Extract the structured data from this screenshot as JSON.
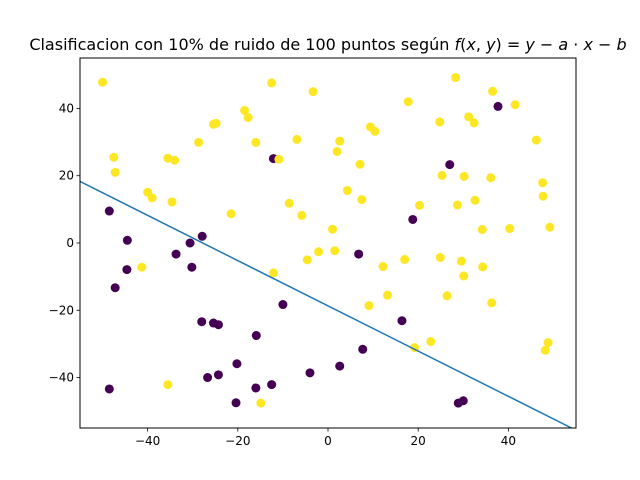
{
  "chart_data": {
    "type": "scatter",
    "title": "Clasificacion con 10% de ruido de 100 puntos según f(x, y) = y − a · x − b",
    "xlabel": "",
    "ylabel": "",
    "xlim": [
      -55,
      55
    ],
    "ylim": [
      -55,
      55
    ],
    "xticks": [
      -40,
      -20,
      0,
      20,
      40
    ],
    "yticks": [
      -40,
      -20,
      0,
      20,
      40
    ],
    "grid": false,
    "colors": {
      "class_pos": "#fde725",
      "class_neg": "#440154",
      "line": "#1f77b4"
    },
    "line": {
      "x": [
        -55,
        54
      ],
      "y": [
        18.3,
        -55
      ]
    },
    "points": [
      {
        "x": -50,
        "y": 47.8,
        "c": 1
      },
      {
        "x": -47.5,
        "y": 25.5,
        "c": 1
      },
      {
        "x": -47.2,
        "y": 21,
        "c": 1
      },
      {
        "x": -48.5,
        "y": 9.5,
        "c": 0
      },
      {
        "x": -48.5,
        "y": -43.4,
        "c": 0
      },
      {
        "x": -47.2,
        "y": -13.3,
        "c": 0
      },
      {
        "x": -44.5,
        "y": 0.8,
        "c": 0
      },
      {
        "x": -44.6,
        "y": -7.9,
        "c": 0
      },
      {
        "x": -41.3,
        "y": -7.2,
        "c": 1
      },
      {
        "x": -40,
        "y": 15.1,
        "c": 1
      },
      {
        "x": -39,
        "y": 13.4,
        "c": 1
      },
      {
        "x": -35.5,
        "y": 25.2,
        "c": 1
      },
      {
        "x": -35.5,
        "y": -42.1,
        "c": 1
      },
      {
        "x": -34.6,
        "y": 12.2,
        "c": 1
      },
      {
        "x": -34,
        "y": 24.6,
        "c": 1
      },
      {
        "x": -33.7,
        "y": -3.3,
        "c": 0
      },
      {
        "x": -30.6,
        "y": 0,
        "c": 0
      },
      {
        "x": -30.2,
        "y": -7.2,
        "c": 0
      },
      {
        "x": -28.7,
        "y": 29.9,
        "c": 1
      },
      {
        "x": -27.9,
        "y": 2,
        "c": 0
      },
      {
        "x": -28,
        "y": -23.4,
        "c": 0
      },
      {
        "x": -26.7,
        "y": -40,
        "c": 0
      },
      {
        "x": -25.4,
        "y": 35.3,
        "c": 1
      },
      {
        "x": -24.8,
        "y": 35.6,
        "c": 1
      },
      {
        "x": -25.4,
        "y": -23.8,
        "c": 0
      },
      {
        "x": -24.3,
        "y": -24.3,
        "c": 0
      },
      {
        "x": -24.3,
        "y": -39.2,
        "c": 0
      },
      {
        "x": -21.5,
        "y": 8.7,
        "c": 1
      },
      {
        "x": -20.2,
        "y": -35.9,
        "c": 0
      },
      {
        "x": -20.4,
        "y": -47.5,
        "c": 0
      },
      {
        "x": -18.5,
        "y": 39.4,
        "c": 1
      },
      {
        "x": -17.7,
        "y": 37.3,
        "c": 1
      },
      {
        "x": -16,
        "y": 29.9,
        "c": 1
      },
      {
        "x": -15.9,
        "y": -27.5,
        "c": 0
      },
      {
        "x": -16,
        "y": -43.1,
        "c": 0
      },
      {
        "x": -14.9,
        "y": -47.6,
        "c": 1
      },
      {
        "x": -12.5,
        "y": 47.6,
        "c": 1
      },
      {
        "x": -12.1,
        "y": 25.1,
        "c": 0
      },
      {
        "x": -10.9,
        "y": 24.9,
        "c": 1
      },
      {
        "x": -12.1,
        "y": -8.9,
        "c": 1
      },
      {
        "x": -12.5,
        "y": -42.1,
        "c": 0
      },
      {
        "x": -10,
        "y": -18.3,
        "c": 0
      },
      {
        "x": -8.6,
        "y": 11.8,
        "c": 1
      },
      {
        "x": -6.9,
        "y": 30.8,
        "c": 1
      },
      {
        "x": -5.8,
        "y": 8.2,
        "c": 1
      },
      {
        "x": -4.6,
        "y": -5,
        "c": 1
      },
      {
        "x": -4,
        "y": -38.6,
        "c": 0
      },
      {
        "x": -3.3,
        "y": 45,
        "c": 1
      },
      {
        "x": -2.1,
        "y": -2.6,
        "c": 1
      },
      {
        "x": 1,
        "y": 4.1,
        "c": 1
      },
      {
        "x": 1.5,
        "y": -2.3,
        "c": 1
      },
      {
        "x": 2,
        "y": 27.2,
        "c": 1
      },
      {
        "x": 2.6,
        "y": 30.3,
        "c": 1
      },
      {
        "x": 2.6,
        "y": -36.6,
        "c": 0
      },
      {
        "x": 4.3,
        "y": 15.6,
        "c": 1
      },
      {
        "x": 6.8,
        "y": -3.3,
        "c": 0
      },
      {
        "x": 7.1,
        "y": 23.4,
        "c": 1
      },
      {
        "x": 7.5,
        "y": 12.9,
        "c": 1
      },
      {
        "x": 7.7,
        "y": -31.6,
        "c": 0
      },
      {
        "x": 9.1,
        "y": -18.6,
        "c": 1
      },
      {
        "x": 9.4,
        "y": 34.5,
        "c": 1
      },
      {
        "x": 10.4,
        "y": 33.2,
        "c": 1
      },
      {
        "x": 12.2,
        "y": -7,
        "c": 1
      },
      {
        "x": 13.2,
        "y": -15.5,
        "c": 1
      },
      {
        "x": 16.4,
        "y": -23.1,
        "c": 0
      },
      {
        "x": 17,
        "y": -4.9,
        "c": 1
      },
      {
        "x": 17.8,
        "y": 42,
        "c": 1
      },
      {
        "x": 18.8,
        "y": 7,
        "c": 0
      },
      {
        "x": 19.2,
        "y": -31.1,
        "c": 1
      },
      {
        "x": 20.3,
        "y": 11.2,
        "c": 1
      },
      {
        "x": 22.8,
        "y": -29.3,
        "c": 1
      },
      {
        "x": 24.8,
        "y": 36,
        "c": 1
      },
      {
        "x": 24.9,
        "y": -4.3,
        "c": 1
      },
      {
        "x": 25.3,
        "y": 20.1,
        "c": 1
      },
      {
        "x": 26.4,
        "y": -15.7,
        "c": 1
      },
      {
        "x": 27,
        "y": 23.3,
        "c": 0
      },
      {
        "x": 28.3,
        "y": 49.2,
        "c": 1
      },
      {
        "x": 28.7,
        "y": 11.3,
        "c": 1
      },
      {
        "x": 28.9,
        "y": -47.6,
        "c": 0
      },
      {
        "x": 29.6,
        "y": -5.4,
        "c": 1
      },
      {
        "x": 30.2,
        "y": 19.8,
        "c": 1
      },
      {
        "x": 30.1,
        "y": -9.8,
        "c": 1
      },
      {
        "x": 30,
        "y": -46.9,
        "c": 0
      },
      {
        "x": 31.2,
        "y": 37.5,
        "c": 1
      },
      {
        "x": 32.4,
        "y": 35.7,
        "c": 1
      },
      {
        "x": 32.6,
        "y": 12.7,
        "c": 1
      },
      {
        "x": 34.2,
        "y": 4,
        "c": 1
      },
      {
        "x": 34.3,
        "y": -7.1,
        "c": 1
      },
      {
        "x": 36.1,
        "y": 19.4,
        "c": 1
      },
      {
        "x": 36.5,
        "y": 45.1,
        "c": 1
      },
      {
        "x": 36.3,
        "y": -17.8,
        "c": 1
      },
      {
        "x": 37.7,
        "y": 40.6,
        "c": 0
      },
      {
        "x": 40.3,
        "y": 4.3,
        "c": 1
      },
      {
        "x": 41.5,
        "y": 41.1,
        "c": 1
      },
      {
        "x": 46.2,
        "y": 30.6,
        "c": 1
      },
      {
        "x": 47.6,
        "y": 17.9,
        "c": 1
      },
      {
        "x": 47.7,
        "y": 13.9,
        "c": 1
      },
      {
        "x": 48.2,
        "y": -31.9,
        "c": 1
      },
      {
        "x": 48.8,
        "y": -29.6,
        "c": 1
      },
      {
        "x": 49.2,
        "y": 4.7,
        "c": 1
      }
    ]
  }
}
